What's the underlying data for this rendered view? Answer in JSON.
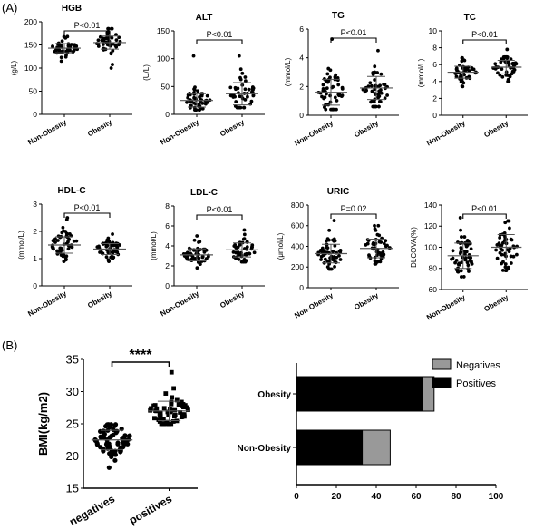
{
  "figure": {
    "label_a": "(A)",
    "label_b": "(B)"
  },
  "chart_data": [
    {
      "id": "HGB",
      "type": "scatter",
      "title": "HGB",
      "ylabel": "(g/L)",
      "categories": [
        "Non-Obesity",
        "Obesity"
      ],
      "ylim": [
        0,
        200
      ],
      "yticks": [
        0,
        50,
        100,
        150,
        200
      ],
      "significance": "P<0.01",
      "series": [
        {
          "mean": 143,
          "sd": 10,
          "min": 115,
          "max": 168,
          "n": 48
        },
        {
          "mean": 155,
          "sd": 14,
          "min": 100,
          "max": 185,
          "n": 48
        }
      ]
    },
    {
      "id": "ALT",
      "type": "scatter",
      "title": "ALT",
      "ylabel": "(U/L)",
      "categories": [
        "Non-Obesity",
        "Obesity"
      ],
      "ylim": [
        0,
        150
      ],
      "yticks": [
        0,
        50,
        100,
        150
      ],
      "significance": "P<0.01",
      "series": [
        {
          "mean": 25,
          "sd": 12,
          "min": 8,
          "max": 105,
          "n": 52
        },
        {
          "mean": 37,
          "sd": 20,
          "min": 12,
          "max": 105,
          "n": 48
        }
      ]
    },
    {
      "id": "TG",
      "type": "scatter",
      "title": "TG",
      "ylabel": "(mmol/L)",
      "categories": [
        "Non-Obesity",
        "Obesity"
      ],
      "ylim": [
        0,
        6
      ],
      "yticks": [
        0,
        2,
        4,
        6
      ],
      "significance": "P<0.01",
      "series": [
        {
          "mean": 1.6,
          "sd": 0.9,
          "min": 0.4,
          "max": 5.3,
          "n": 55
        },
        {
          "mean": 1.9,
          "sd": 0.8,
          "min": 0.6,
          "max": 4.5,
          "n": 50
        }
      ]
    },
    {
      "id": "TC",
      "type": "scatter",
      "title": "TC",
      "ylabel": "(mmol/L)",
      "categories": [
        "Non-Obesity",
        "Obesity"
      ],
      "ylim": [
        0,
        10
      ],
      "yticks": [
        0,
        2,
        4,
        6,
        8,
        10
      ],
      "significance": "P<0.01",
      "series": [
        {
          "mean": 5.1,
          "sd": 0.7,
          "min": 3.4,
          "max": 6.8,
          "n": 50
        },
        {
          "mean": 5.7,
          "sd": 0.8,
          "min": 4.0,
          "max": 7.8,
          "n": 48
        }
      ]
    },
    {
      "id": "HDL-C",
      "type": "scatter",
      "title": "HDL-C",
      "ylabel": "(mmol/L)",
      "categories": [
        "Non-Obesity",
        "Obesity"
      ],
      "ylim": [
        0,
        3
      ],
      "yticks": [
        0,
        1,
        2,
        3
      ],
      "significance": "P<0.01",
      "series": [
        {
          "mean": 1.5,
          "sd": 0.3,
          "min": 0.9,
          "max": 2.5,
          "n": 55
        },
        {
          "mean": 1.35,
          "sd": 0.2,
          "min": 0.9,
          "max": 1.9,
          "n": 48
        }
      ]
    },
    {
      "id": "LDL-C",
      "type": "scatter",
      "title": "LDL-C",
      "ylabel": "(mmol/L)",
      "categories": [
        "Non-Obesity",
        "Obesity"
      ],
      "ylim": [
        0,
        8
      ],
      "yticks": [
        0,
        2,
        4,
        6,
        8
      ],
      "significance": "P<0.01",
      "series": [
        {
          "mean": 3.1,
          "sd": 0.6,
          "min": 1.8,
          "max": 5.0,
          "n": 52
        },
        {
          "mean": 3.6,
          "sd": 0.7,
          "min": 2.4,
          "max": 5.6,
          "n": 48
        }
      ]
    },
    {
      "id": "URIC",
      "type": "scatter",
      "title": "URIC",
      "ylabel": "(μmol/L)",
      "categories": [
        "Non-Obesity",
        "Obesity"
      ],
      "ylim": [
        0,
        800
      ],
      "yticks": [
        0,
        200,
        400,
        600,
        800
      ],
      "significance": "P=0.02",
      "series": [
        {
          "mean": 330,
          "sd": 90,
          "min": 180,
          "max": 650,
          "n": 55
        },
        {
          "mean": 380,
          "sd": 90,
          "min": 230,
          "max": 600,
          "n": 48
        }
      ]
    },
    {
      "id": "DLCOVA",
      "type": "scatter",
      "title": "",
      "ylabel": "DLCOVA(%)",
      "categories": [
        "Non-Obesity",
        "Obesity"
      ],
      "ylim": [
        60,
        140
      ],
      "yticks": [
        60,
        80,
        100,
        120,
        140
      ],
      "significance": "P<0.01",
      "series": [
        {
          "mean": 92,
          "sd": 12,
          "min": 72,
          "max": 128,
          "n": 55
        },
        {
          "mean": 100,
          "sd": 12,
          "min": 78,
          "max": 125,
          "n": 50
        }
      ]
    },
    {
      "id": "BMI",
      "type": "scatter",
      "title": "",
      "ylabel": "BMI(kg/m2)",
      "categories": [
        "negatives",
        "positives"
      ],
      "ylim": [
        15,
        35
      ],
      "yticks": [
        15,
        20,
        25,
        30,
        35
      ],
      "significance": "****",
      "series": [
        {
          "mean": 22.5,
          "sd": 1.5,
          "min": 18.2,
          "max": 24.9,
          "n": 70
        },
        {
          "mean": 27,
          "sd": 1.5,
          "min": 25,
          "max": 33,
          "n": 60
        }
      ]
    },
    {
      "id": "stacked",
      "type": "bar",
      "orientation": "horizontal",
      "stacked": true,
      "categories": [
        "Obesity",
        "Non-Obesity"
      ],
      "xlim": [
        0,
        100
      ],
      "xticks": [
        0,
        20,
        40,
        60,
        80,
        100
      ],
      "legend_position": "top-right",
      "series": [
        {
          "name": "Positives",
          "color": "#000000",
          "values": [
            63,
            33
          ]
        },
        {
          "name": "Negatives",
          "color": "#999999",
          "values": [
            6,
            14
          ]
        }
      ]
    }
  ]
}
